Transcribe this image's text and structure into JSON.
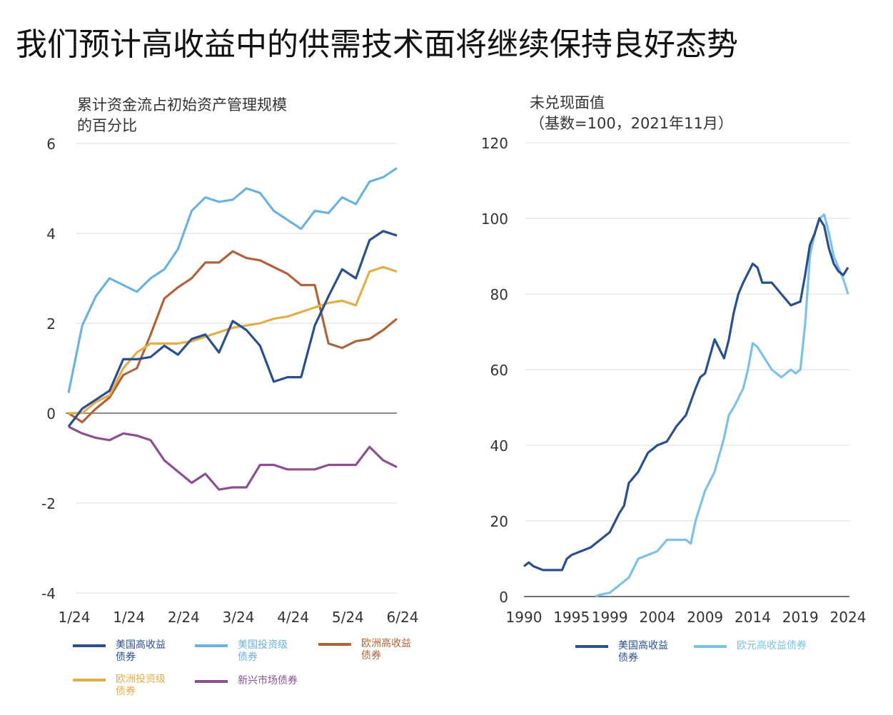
{
  "title": "我们预计高收益中的供需技术面将继续保持良好态势",
  "charts_meta": {
    "left": {
      "title_line1": "累计资金流占初始资产管理规模",
      "title_line2": "的百分比"
    },
    "right": {
      "title_line1": "未兑现面值",
      "title_line2": "（基数=100，2021年11月）"
    }
  },
  "colors": {
    "us_hy": "#2a4f8f",
    "us_ig": "#6ab3de",
    "eu_hy": "#b0623a",
    "eu_ig": "#e3ae48",
    "em": "#8e4f92",
    "eur_hy": "#7cc1e6",
    "grid": "#e2e2e2",
    "zero": "#666666"
  },
  "chart_data": [
    {
      "type": "line",
      "title": "累计资金流占初始资产管理规模的百分比",
      "xlabel": "",
      "ylabel": "",
      "ylim": [
        -4,
        6
      ],
      "yticks": [
        "6",
        "4",
        "2",
        "0",
        "-2",
        "-4"
      ],
      "ytick_values": [
        6,
        4,
        2,
        0,
        -2,
        -4
      ],
      "xtick_labels": [
        "1/24",
        "1/24",
        "2/24",
        "3/24",
        "4/24",
        "5/24",
        "6/24"
      ],
      "xtick_index": [
        0,
        4,
        8,
        12,
        16,
        20,
        24
      ],
      "legend": "bottom",
      "series": [
        {
          "key": "us_hy",
          "name": "美国高收益债券",
          "name_line1": "美国高收益",
          "name_line2": "债券",
          "values": [
            -0.3,
            0.1,
            0.3,
            0.5,
            1.2,
            1.2,
            1.25,
            1.5,
            1.3,
            1.65,
            1.75,
            1.35,
            2.05,
            1.85,
            1.5,
            0.7,
            0.8,
            0.8,
            1.95,
            2.6,
            3.2,
            3.0,
            3.85,
            4.05,
            3.95
          ]
        },
        {
          "key": "us_ig",
          "name": "美国投资级债券",
          "name_line1": "美国投资级",
          "name_line2": "债券",
          "values": [
            0.45,
            1.95,
            2.6,
            3.0,
            2.85,
            2.7,
            3.0,
            3.2,
            3.65,
            4.5,
            4.8,
            4.7,
            4.75,
            5.0,
            4.9,
            4.5,
            4.3,
            4.1,
            4.5,
            4.45,
            4.8,
            4.65,
            5.15,
            5.25,
            5.45
          ]
        },
        {
          "key": "eu_hy",
          "name": "欧洲高收益债券",
          "name_line1": "欧洲高收益",
          "name_line2": "债券",
          "values": [
            0.0,
            -0.2,
            0.1,
            0.35,
            0.85,
            1.0,
            1.75,
            2.55,
            2.8,
            3.0,
            3.35,
            3.35,
            3.6,
            3.45,
            3.4,
            3.25,
            3.1,
            2.85,
            2.85,
            1.55,
            1.45,
            1.6,
            1.65,
            1.85,
            2.1
          ]
        },
        {
          "key": "eu_ig",
          "name": "欧洲投资级债券",
          "name_line1": "欧洲投资级",
          "name_line2": "债券",
          "values": [
            0.0,
            0.0,
            0.25,
            0.4,
            1.0,
            1.35,
            1.55,
            1.55,
            1.55,
            1.6,
            1.7,
            1.8,
            1.9,
            1.95,
            2.0,
            2.1,
            2.15,
            2.25,
            2.35,
            2.45,
            2.5,
            2.4,
            3.15,
            3.25,
            3.15
          ]
        },
        {
          "key": "em",
          "name": "新兴市场债券",
          "name_line1": "新兴市场债券",
          "name_line2": "",
          "values": [
            -0.3,
            -0.45,
            -0.55,
            -0.6,
            -0.45,
            -0.5,
            -0.6,
            -1.05,
            -1.3,
            -1.55,
            -1.35,
            -1.7,
            -1.65,
            -1.65,
            -1.15,
            -1.15,
            -1.25,
            -1.25,
            -1.25,
            -1.15,
            -1.15,
            -1.15,
            -0.75,
            -1.05,
            -1.2
          ]
        }
      ]
    },
    {
      "type": "line",
      "title": "未兑现面值（基数=100，2021年11月）",
      "xlabel": "",
      "ylabel": "",
      "xlim": [
        1990,
        2024
      ],
      "ylim": [
        0,
        120
      ],
      "yticks": [
        "120",
        "100",
        "80",
        "60",
        "40",
        "20",
        "0"
      ],
      "ytick_values": [
        120,
        100,
        80,
        60,
        40,
        20,
        0
      ],
      "xticks": [
        "1990",
        "1995",
        "1999",
        "2004",
        "2009",
        "2014",
        "2019",
        "2024"
      ],
      "xtick_values": [
        1990,
        1995,
        1999,
        2004,
        2009,
        2014,
        2019,
        2024
      ],
      "legend": "bottom",
      "series": [
        {
          "key": "us_hy",
          "name": "美国高收益债券",
          "name_line1": "美国高收益",
          "name_line2": "债券",
          "x": [
            1990,
            1990.5,
            1991,
            1992,
            1993,
            1994,
            1994.5,
            1995,
            1996,
            1997,
            1998,
            1999,
            2000,
            2000.5,
            2001,
            2002,
            2003,
            2004,
            2005,
            2006,
            2007,
            2008,
            2008.5,
            2009,
            2010,
            2011,
            2011.5,
            2012,
            2012.5,
            2013,
            2014,
            2014.5,
            2015,
            2016,
            2017,
            2018,
            2019,
            2019.5,
            2020,
            2020.5,
            2021,
            2021.5,
            2022,
            2022.5,
            2023,
            2023.5,
            2024
          ],
          "values": [
            8,
            9,
            8,
            7,
            7,
            7,
            10,
            11,
            12,
            13,
            15,
            17,
            22,
            24,
            30,
            33,
            38,
            40,
            41,
            45,
            48,
            55,
            58,
            59,
            68,
            63,
            68,
            75,
            80,
            83,
            88,
            87,
            83,
            83,
            80,
            77,
            78,
            85,
            93,
            96,
            100,
            98,
            92,
            88,
            86,
            85,
            87
          ]
        },
        {
          "key": "eur_hy",
          "name": "欧元高收益债券",
          "name_line1": "欧元高收益债券",
          "name_line2": "",
          "x": [
            1997.5,
            1998,
            1999,
            2000,
            2001,
            2002,
            2003,
            2004,
            2005,
            2006,
            2007,
            2007.5,
            2008,
            2009,
            2010,
            2011,
            2011.5,
            2012,
            2013,
            2013.5,
            2014,
            2014.5,
            2015,
            2016,
            2017,
            2018,
            2018.5,
            2019,
            2019.5,
            2020,
            2020.5,
            2021,
            2021.5,
            2022,
            2022.5,
            2023,
            2023.5,
            2024
          ],
          "values": [
            0,
            0.5,
            1,
            3,
            5,
            10,
            11,
            12,
            15,
            15,
            15,
            14,
            20,
            28,
            33,
            42,
            48,
            50,
            55,
            60,
            67,
            66,
            64,
            60,
            58,
            60,
            59,
            60,
            72,
            90,
            96,
            100,
            101,
            96,
            90,
            87,
            84,
            80
          ]
        }
      ]
    }
  ]
}
